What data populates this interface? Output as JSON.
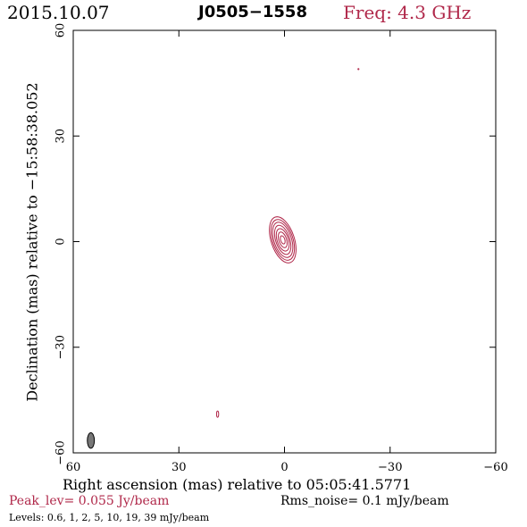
{
  "header": {
    "date": "2015.10.07",
    "source": "J0505−1558",
    "freq": "Freq: 4.3 GHz"
  },
  "footer": {
    "peak": "Peak_lev=  0.055 Jy/beam",
    "rms": "Rms_noise=   0.1 mJy/beam",
    "levels": "Levels: 0.6,    1,    2,    5,   10,   19,   39 mJy/beam"
  },
  "colors": {
    "contour": "#b0284a",
    "beam": "#777777",
    "axis": "#000000"
  },
  "chart_data": {
    "type": "contour",
    "xlabel": "Right ascension (mas) relative to 05:05:41.5771",
    "ylabel": "Declination (mas) relative to −15:58:38.052",
    "xlim": [
      60,
      -60
    ],
    "ylim": [
      -60,
      60
    ],
    "xticks": [
      60,
      30,
      0,
      -30,
      -60
    ],
    "yticks": [
      -60,
      -30,
      0,
      30,
      60
    ],
    "xtick_labels": [
      "60",
      "30",
      "0",
      "−30",
      "−60"
    ],
    "ytick_labels": [
      "−60",
      "−30",
      "0",
      "30",
      "60"
    ],
    "levels_mJy_per_beam": [
      0.6,
      1,
      2,
      5,
      10,
      19,
      39
    ],
    "peak_Jy_per_beam": 0.055,
    "rms_noise_mJy_per_beam": 0.1,
    "source_center": [
      0.5,
      0.5
    ],
    "contours": [
      {
        "level": 0.6,
        "ra_halfwidth": 3.3,
        "dec_halfwidth": 6.8,
        "angle_deg": -18
      },
      {
        "level": 1,
        "ra_halfwidth": 2.9,
        "dec_halfwidth": 6.0,
        "angle_deg": -18
      },
      {
        "level": 2,
        "ra_halfwidth": 2.5,
        "dec_halfwidth": 5.2,
        "angle_deg": -18
      },
      {
        "level": 5,
        "ra_halfwidth": 2.0,
        "dec_halfwidth": 4.3,
        "angle_deg": -18
      },
      {
        "level": 10,
        "ra_halfwidth": 1.6,
        "dec_halfwidth": 3.3,
        "angle_deg": -18
      },
      {
        "level": 19,
        "ra_halfwidth": 1.1,
        "dec_halfwidth": 2.3,
        "angle_deg": -18
      },
      {
        "level": 39,
        "ra_halfwidth": 0.6,
        "dec_halfwidth": 1.2,
        "angle_deg": -18
      }
    ],
    "extra_features": [
      {
        "ra": 19,
        "dec": -49,
        "ra_halfwidth": 0.3,
        "dec_halfwidth": 0.9
      },
      {
        "ra": -21,
        "dec": 49,
        "ra_halfwidth": 0.15,
        "dec_halfwidth": 0.15
      }
    ],
    "beam": {
      "ra": 55,
      "dec": -56.5,
      "ra_halfwidth": 1.0,
      "dec_halfwidth": 2.2,
      "angle_deg": 0
    }
  }
}
